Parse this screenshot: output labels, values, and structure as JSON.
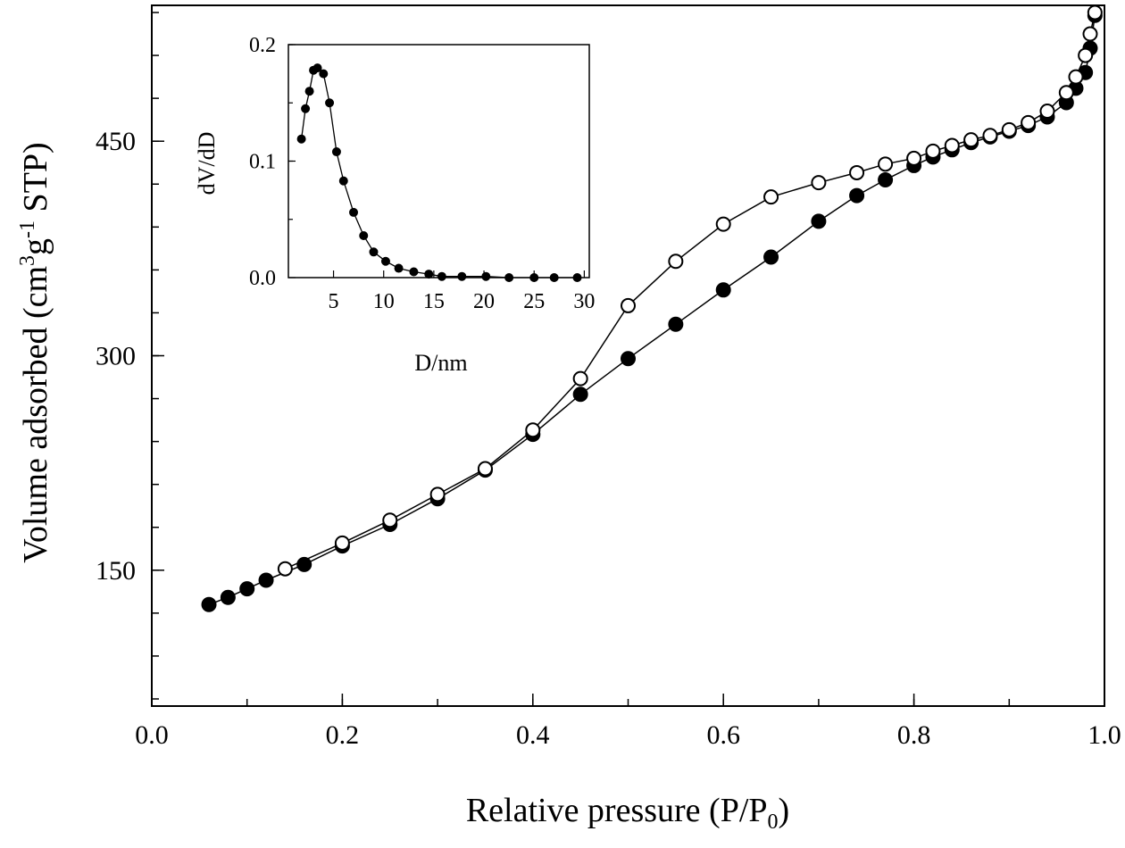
{
  "chart_data": [
    {
      "type": "line",
      "xlabel": "Relative pressure (P/P",
      "xlabel_sub": "0",
      "xlabel_end": ")",
      "ylabel_pre": "Volume adsorbed (cm",
      "ylabel_sup1": "3",
      "ylabel_mid": "g",
      "ylabel_sup2": "-1",
      "ylabel_post": " STP)",
      "xlim": [
        0.0,
        1.0
      ],
      "ylim": [
        55,
        545
      ],
      "xticks": [
        "0.0",
        "0.2",
        "0.4",
        "0.6",
        "0.8",
        "1.0"
      ],
      "xtick_values": [
        0.0,
        0.2,
        0.4,
        0.6,
        0.8,
        1.0
      ],
      "yticks": [
        "150",
        "300",
        "450"
      ],
      "ytick_values": [
        150,
        300,
        450
      ],
      "series": [
        {
          "marker": "filled-circle",
          "x": [
            0.06,
            0.08,
            0.1,
            0.12,
            0.16,
            0.2,
            0.25,
            0.3,
            0.35,
            0.4,
            0.45,
            0.5,
            0.55,
            0.6,
            0.65,
            0.7,
            0.74,
            0.77,
            0.8,
            0.82,
            0.84,
            0.86,
            0.88,
            0.9,
            0.92,
            0.94,
            0.96,
            0.97,
            0.98,
            0.985,
            0.99
          ],
          "y": [
            126,
            131,
            137,
            143,
            154,
            167,
            182,
            200,
            220,
            245,
            273,
            298,
            322,
            346,
            369,
            394,
            412,
            423,
            433,
            439,
            444,
            449,
            453,
            457,
            461,
            467,
            477,
            487,
            498,
            515,
            538
          ]
        },
        {
          "marker": "open-circle",
          "x": [
            0.14,
            0.2,
            0.25,
            0.3,
            0.35,
            0.4,
            0.45,
            0.5,
            0.55,
            0.6,
            0.65,
            0.7,
            0.74,
            0.77,
            0.8,
            0.82,
            0.84,
            0.86,
            0.88,
            0.9,
            0.92,
            0.94,
            0.96,
            0.97,
            0.98,
            0.985,
            0.99
          ],
          "y": [
            151,
            169,
            185,
            203,
            221,
            248,
            284,
            335,
            366,
            392,
            411,
            421,
            428,
            434,
            438,
            443,
            447,
            451,
            454,
            458,
            463,
            471,
            484,
            495,
            510,
            525,
            540
          ]
        }
      ]
    },
    {
      "type": "line",
      "xlabel": "D/nm",
      "ylabel": "dV/dD",
      "xlim": [
        0.5,
        30.5
      ],
      "ylim": [
        0.0,
        0.2
      ],
      "xticks": [
        "5",
        "10",
        "15",
        "20",
        "25",
        "30"
      ],
      "xtick_values": [
        5,
        10,
        15,
        20,
        25,
        30
      ],
      "yticks": [
        "0.0",
        "0.1",
        "0.2"
      ],
      "ytick_values": [
        0.0,
        0.1,
        0.2
      ],
      "series": [
        {
          "marker": "filled-circle",
          "x": [
            1.8,
            2.2,
            2.6,
            3.0,
            3.4,
            4.0,
            4.6,
            5.3,
            6.0,
            7.0,
            8.0,
            9.0,
            10.2,
            11.5,
            13.0,
            14.5,
            15.8,
            17.8,
            20.2,
            22.5,
            25.0,
            27.0,
            29.3
          ],
          "y": [
            0.119,
            0.145,
            0.16,
            0.178,
            0.18,
            0.175,
            0.15,
            0.108,
            0.083,
            0.056,
            0.036,
            0.022,
            0.014,
            0.008,
            0.005,
            0.003,
            0.001,
            0.001,
            0.001,
            0.0,
            0.0,
            0.0,
            0.0
          ]
        }
      ]
    }
  ]
}
